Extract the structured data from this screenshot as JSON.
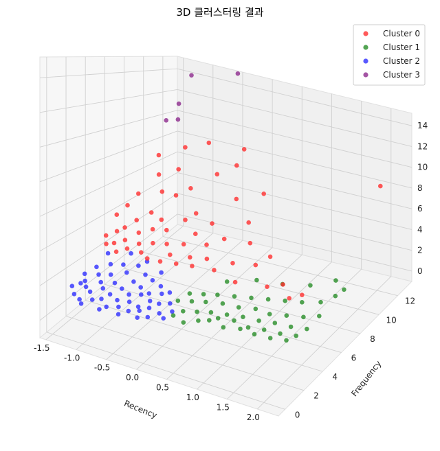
{
  "chart_data": {
    "type": "scatter",
    "title": "3D 클러스터링 결과",
    "xlabel": "Recency",
    "ylabel": "Frequency",
    "zlabel": "",
    "x_ticks": [
      "-1.5",
      "-1.0",
      "-0.5",
      "0.0",
      "0.5",
      "1.0",
      "1.5",
      "2.0"
    ],
    "y_ticks": [
      "0",
      "2",
      "4",
      "6",
      "8",
      "10",
      "12"
    ],
    "z_ticks": [
      "0",
      "2",
      "4",
      "6",
      "8",
      "10",
      "12",
      "14"
    ],
    "xlim": [
      -1.6,
      2.35
    ],
    "ylim": [
      -0.7,
      13.5
    ],
    "zlim": [
      -1,
      15.2
    ],
    "grid": true,
    "legend_position": "top-right",
    "colors": {
      "Cluster 0": "#ff2a2a",
      "Cluster 1": "#228b22",
      "Cluster 2": "#2a2aff",
      "Cluster 3": "#8b258b"
    },
    "series": [
      {
        "name": "Cluster 0",
        "cluster": 0,
        "color": "#ff2a2a",
        "points": [
          [
            -1.45,
            5.2,
            3.0
          ],
          [
            -1.4,
            6.0,
            4.2
          ],
          [
            -1.35,
            4.6,
            2.8
          ],
          [
            -1.3,
            6.5,
            4.8
          ],
          [
            -1.3,
            5.4,
            3.4
          ],
          [
            -1.25,
            4.8,
            2.9
          ],
          [
            -1.2,
            5.6,
            3.7
          ],
          [
            -1.2,
            7.0,
            5.6
          ],
          [
            -1.15,
            4.4,
            2.6
          ],
          [
            -1.1,
            6.2,
            4.1
          ],
          [
            -1.1,
            5.0,
            3.2
          ],
          [
            -1.05,
            8.2,
            6.8
          ],
          [
            -1.0,
            5.8,
            3.5
          ],
          [
            -1.0,
            4.6,
            2.9
          ],
          [
            -0.95,
            6.8,
            4.6
          ],
          [
            -0.9,
            7.6,
            5.9
          ],
          [
            -0.9,
            5.2,
            3.1
          ],
          [
            -0.85,
            9.0,
            7.2
          ],
          [
            -0.8,
            6.0,
            3.9
          ],
          [
            -0.8,
            4.8,
            2.8
          ],
          [
            -0.75,
            6.6,
            4.4
          ],
          [
            -0.7,
            5.4,
            3.3
          ],
          [
            -0.7,
            7.8,
            5.8
          ],
          [
            -0.65,
            4.5,
            2.7
          ],
          [
            -0.6,
            6.2,
            4.0
          ],
          [
            -0.55,
            8.4,
            6.3
          ],
          [
            -0.5,
            5.6,
            3.4
          ],
          [
            -0.45,
            4.6,
            2.7
          ],
          [
            -0.4,
            6.9,
            4.7
          ],
          [
            -0.35,
            5.0,
            3.1
          ],
          [
            -0.3,
            7.4,
            5.1
          ],
          [
            -0.3,
            9.6,
            7.3
          ],
          [
            -0.25,
            5.8,
            3.6
          ],
          [
            -0.2,
            4.7,
            2.8
          ],
          [
            -0.15,
            6.4,
            4.2
          ],
          [
            -0.1,
            10.4,
            8.0
          ],
          [
            -0.05,
            5.2,
            3.2
          ],
          [
            0.0,
            7.2,
            4.8
          ],
          [
            0.05,
            4.8,
            2.9
          ],
          [
            0.1,
            6.0,
            3.9
          ],
          [
            0.15,
            8.8,
            6.2
          ],
          [
            0.2,
            5.4,
            3.3
          ],
          [
            0.3,
            6.6,
            4.3
          ],
          [
            0.4,
            4.9,
            3.0
          ],
          [
            0.5,
            7.9,
            5.2
          ],
          [
            0.6,
            5.6,
            3.4
          ],
          [
            0.7,
            6.8,
            4.4
          ],
          [
            0.8,
            4.6,
            2.8
          ],
          [
            0.95,
            5.8,
            3.6
          ],
          [
            1.1,
            6.4,
            4.1
          ],
          [
            1.3,
            4.8,
            3.0
          ],
          [
            1.5,
            5.2,
            3.2
          ],
          [
            1.7,
            4.6,
            2.8
          ],
          [
            1.85,
            5.0,
            3.0
          ],
          [
            1.9,
            13.0,
            7.8
          ],
          [
            -0.6,
            10.6,
            9.2
          ],
          [
            -0.9,
            10.0,
            8.6
          ],
          [
            -0.2,
            11.8,
            8.8
          ],
          [
            0.45,
            9.8,
            6.6
          ],
          [
            -1.15,
            8.8,
            8.0
          ]
        ]
      },
      {
        "name": "Cluster 1",
        "cluster": 1,
        "color": "#228b22",
        "points": [
          [
            0.1,
            3.0,
            1.5
          ],
          [
            0.15,
            2.2,
            1.0
          ],
          [
            0.2,
            3.6,
            1.8
          ],
          [
            0.25,
            2.6,
            1.2
          ],
          [
            0.3,
            3.2,
            1.6
          ],
          [
            0.35,
            2.0,
            0.9
          ],
          [
            0.4,
            3.8,
            1.9
          ],
          [
            0.45,
            2.8,
            1.3
          ],
          [
            0.5,
            3.4,
            1.7
          ],
          [
            0.55,
            2.3,
            1.1
          ],
          [
            0.6,
            4.0,
            2.0
          ],
          [
            0.65,
            3.0,
            1.4
          ],
          [
            0.7,
            2.5,
            1.2
          ],
          [
            0.75,
            3.6,
            1.8
          ],
          [
            0.8,
            2.8,
            1.3
          ],
          [
            0.85,
            4.2,
            2.1
          ],
          [
            0.9,
            3.1,
            1.5
          ],
          [
            0.95,
            2.4,
            1.1
          ],
          [
            1.0,
            3.7,
            1.8
          ],
          [
            1.05,
            2.9,
            1.4
          ],
          [
            1.1,
            4.4,
            2.2
          ],
          [
            1.15,
            3.2,
            1.6
          ],
          [
            1.2,
            2.6,
            1.2
          ],
          [
            1.25,
            3.9,
            1.9
          ],
          [
            1.3,
            2.8,
            1.3
          ],
          [
            1.35,
            4.6,
            2.3
          ],
          [
            1.4,
            3.3,
            1.6
          ],
          [
            1.45,
            2.5,
            1.2
          ],
          [
            1.5,
            3.8,
            1.9
          ],
          [
            1.55,
            2.9,
            1.4
          ],
          [
            1.6,
            4.8,
            2.4
          ],
          [
            1.65,
            3.4,
            1.7
          ],
          [
            1.7,
            2.6,
            1.2
          ],
          [
            1.75,
            4.0,
            2.0
          ],
          [
            1.8,
            3.0,
            1.4
          ],
          [
            1.85,
            5.0,
            2.5
          ],
          [
            1.9,
            3.5,
            1.7
          ],
          [
            1.95,
            2.7,
            1.3
          ],
          [
            2.0,
            4.2,
            2.1
          ],
          [
            2.05,
            3.1,
            1.5
          ],
          [
            2.1,
            5.4,
            2.6
          ],
          [
            2.15,
            3.6,
            1.8
          ],
          [
            2.2,
            4.6,
            2.2
          ],
          [
            2.25,
            6.0,
            2.9
          ],
          [
            2.3,
            6.6,
            3.1
          ],
          [
            0.6,
            5.0,
            2.4
          ],
          [
            1.0,
            5.6,
            2.7
          ],
          [
            1.4,
            5.8,
            2.8
          ],
          [
            1.8,
            6.2,
            3.0
          ],
          [
            2.1,
            7.0,
            3.3
          ]
        ]
      },
      {
        "name": "Cluster 2",
        "cluster": 2,
        "color": "#2a2aff",
        "points": [
          [
            -1.5,
            2.0,
            1.0
          ],
          [
            -1.45,
            3.0,
            1.4
          ],
          [
            -1.4,
            1.6,
            0.8
          ],
          [
            -1.38,
            2.6,
            1.2
          ],
          [
            -1.35,
            3.6,
            1.7
          ],
          [
            -1.3,
            2.2,
            1.1
          ],
          [
            -1.28,
            1.4,
            0.7
          ],
          [
            -1.25,
            3.2,
            1.5
          ],
          [
            -1.2,
            2.0,
            1.0
          ],
          [
            -1.18,
            4.0,
            1.9
          ],
          [
            -1.15,
            2.8,
            1.3
          ],
          [
            -1.1,
            1.6,
            0.8
          ],
          [
            -1.08,
            3.4,
            1.6
          ],
          [
            -1.05,
            2.4,
            1.2
          ],
          [
            -1.0,
            4.2,
            2.0
          ],
          [
            -0.98,
            1.8,
            0.9
          ],
          [
            -0.95,
            3.0,
            1.4
          ],
          [
            -0.9,
            2.2,
            1.1
          ],
          [
            -0.88,
            3.8,
            1.8
          ],
          [
            -0.85,
            1.5,
            0.7
          ],
          [
            -0.8,
            2.8,
            1.3
          ],
          [
            -0.78,
            4.4,
            2.1
          ],
          [
            -0.75,
            2.0,
            1.0
          ],
          [
            -0.7,
            3.4,
            1.6
          ],
          [
            -0.68,
            1.7,
            0.8
          ],
          [
            -0.65,
            2.6,
            1.2
          ],
          [
            -0.6,
            4.0,
            1.9
          ],
          [
            -0.58,
            2.2,
            1.0
          ],
          [
            -0.55,
            3.2,
            1.5
          ],
          [
            -0.5,
            1.6,
            0.8
          ],
          [
            -0.48,
            2.8,
            1.3
          ],
          [
            -0.45,
            3.8,
            1.8
          ],
          [
            -0.4,
            2.0,
            1.0
          ],
          [
            -0.38,
            3.0,
            1.4
          ],
          [
            -0.35,
            1.8,
            0.9
          ],
          [
            -0.3,
            2.6,
            1.2
          ],
          [
            -0.28,
            3.6,
            1.7
          ],
          [
            -0.25,
            2.2,
            1.0
          ],
          [
            -0.2,
            3.2,
            1.5
          ],
          [
            -0.18,
            1.6,
            0.8
          ],
          [
            -0.15,
            2.6,
            1.2
          ],
          [
            -0.1,
            3.4,
            1.6
          ],
          [
            -0.05,
            2.0,
            1.0
          ],
          [
            0.0,
            2.8,
            1.3
          ],
          [
            0.05,
            1.8,
            0.9
          ],
          [
            0.1,
            2.4,
            1.1
          ],
          [
            -1.32,
            4.6,
            2.2
          ],
          [
            -1.0,
            5.0,
            2.4
          ],
          [
            -0.7,
            4.8,
            2.3
          ],
          [
            -0.4,
            4.4,
            2.1
          ],
          [
            -1.42,
            2.4,
            1.1
          ],
          [
            -1.22,
            1.2,
            0.6
          ],
          [
            -0.92,
            1.2,
            0.6
          ],
          [
            -0.62,
            1.3,
            0.6
          ],
          [
            -0.32,
            1.4,
            0.7
          ]
        ]
      },
      {
        "name": "Cluster 3",
        "cluster": 3,
        "color": "#8b258b",
        "points": [
          [
            -1.2,
            12.5,
            14.0
          ],
          [
            -1.25,
            11.5,
            11.5
          ],
          [
            -1.3,
            10.5,
            10.2
          ],
          [
            -1.15,
            10.8,
            10.4
          ],
          [
            -0.55,
            13.3,
            15.0
          ]
        ]
      }
    ]
  }
}
